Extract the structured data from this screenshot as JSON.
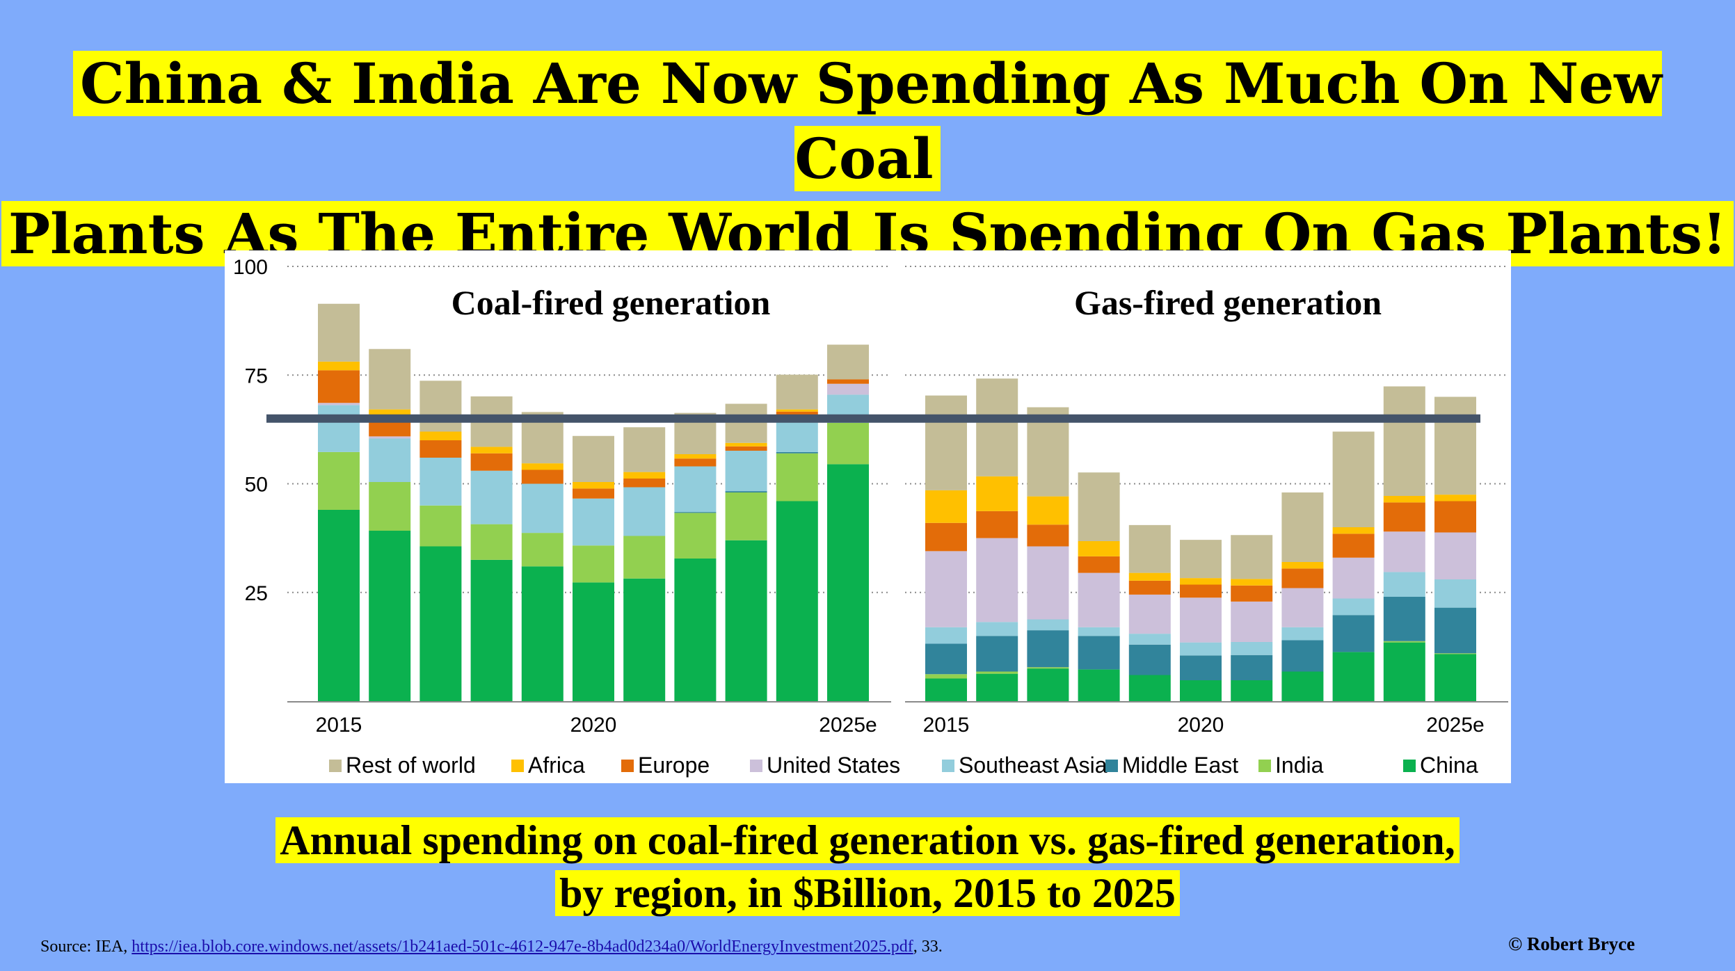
{
  "headline": {
    "line1": "China & India Are Now Spending As Much On New Coal",
    "line2": "Plants As The Entire World Is Spending On Gas Plants!"
  },
  "caption": {
    "line1": "Annual spending on coal-fired generation vs. gas-fired generation,",
    "line2": "by region, in $Billion, 2015 to 2025"
  },
  "source": {
    "prefix": "Source: IEA, ",
    "link": "https://iea.blob.core.windows.net/assets/1b241aed-501c-4612-947e-8b4ad0d234a0/WorldEnergyInvestment2025.pdf",
    "suffix": ", 33."
  },
  "copyright": "© Robert Bryce",
  "colors": {
    "China": "#0bb14f",
    "India": "#92d050",
    "Middle East": "#31849b",
    "Southeast Asia": "#92cddc",
    "United States": "#ccc0da",
    "Europe": "#e36c09",
    "Africa": "#ffc000",
    "Rest of world": "#c4bd97",
    "reference_line": "#44546a"
  },
  "chart_data": {
    "type": "bar",
    "stacked": true,
    "y_ticks": [
      "25",
      "50",
      "75",
      "100"
    ],
    "ylim": [
      0,
      100
    ],
    "x_ticks": [
      "2015",
      "2020",
      "2025e"
    ],
    "legend_position": "bottom",
    "legend_order": [
      "Rest of world",
      "Africa",
      "Europe",
      "United States",
      "Southeast Asia",
      "Middle East",
      "India",
      "China"
    ],
    "grid": true,
    "reference_line_value": 65,
    "panels": [
      {
        "title": "Coal-fired generation",
        "categories": [
          "2015",
          "2016",
          "2017",
          "2018",
          "2019",
          "2020",
          "2021",
          "2022",
          "2023",
          "2024",
          "2025e"
        ],
        "series": [
          {
            "name": "China",
            "values": [
              44,
              39.2,
              35.6,
              32.5,
              31,
              27.3,
              28.2,
              32.8,
              37,
              46,
              54.5
            ]
          },
          {
            "name": "India",
            "values": [
              13.3,
              11.2,
              9.4,
              8.2,
              7.7,
              8.5,
              9.8,
              10.5,
              11,
              11,
              9.5
            ]
          },
          {
            "name": "Middle East",
            "values": [
              0,
              0,
              0,
              0,
              0,
              0,
              0,
              0.2,
              0.3,
              0.3,
              0
            ]
          },
          {
            "name": "Southeast Asia",
            "values": [
              10.8,
              10,
              11,
              12.3,
              11.3,
              10.8,
              11.2,
              10.5,
              9.3,
              8,
              6.5
            ]
          },
          {
            "name": "United States",
            "values": [
              0.5,
              0.5,
              0,
              0,
              0,
              0,
              0,
              0,
              0,
              0.3,
              2.5
            ]
          },
          {
            "name": "Europe",
            "values": [
              7.5,
              4,
              4,
              4,
              3.2,
              2.3,
              2,
              1.8,
              1,
              1,
              1
            ]
          },
          {
            "name": "Africa",
            "values": [
              2,
              2.2,
              2,
              1.5,
              1.5,
              1.5,
              1.5,
              1,
              0.8,
              0.5,
              0
            ]
          },
          {
            "name": "Rest of world",
            "values": [
              13.3,
              13.9,
              11.7,
              11.6,
              11.8,
              10.6,
              10.3,
              9.5,
              9,
              8,
              8
            ]
          }
        ]
      },
      {
        "title": "Gas-fired generation",
        "categories": [
          "2015",
          "2016",
          "2017",
          "2018",
          "2019",
          "2020",
          "2021",
          "2022",
          "2023",
          "2024",
          "2025e"
        ],
        "series": [
          {
            "name": "China",
            "values": [
              5.2,
              6.3,
              7.5,
              7.3,
              6,
              4.8,
              4.8,
              6.8,
              11.3,
              13.5,
              10.8
            ]
          },
          {
            "name": "India",
            "values": [
              1,
              0.5,
              0.3,
              0,
              0,
              0,
              0,
              0,
              0,
              0.3,
              0.2
            ]
          },
          {
            "name": "Middle East",
            "values": [
              7,
              8.2,
              8.5,
              7.7,
              7,
              5.7,
              5.8,
              7.2,
              8.5,
              10.2,
              10.5
            ]
          },
          {
            "name": "Southeast Asia",
            "values": [
              3.8,
              3.2,
              2.5,
              2,
              2.5,
              3,
              3,
              3,
              3.8,
              5.7,
              6.5
            ]
          },
          {
            "name": "United States",
            "values": [
              17.5,
              19.3,
              16.8,
              12.5,
              9,
              10.3,
              9.3,
              9,
              9.4,
              9.3,
              10.8
            ]
          },
          {
            "name": "Europe",
            "values": [
              6.5,
              6.2,
              5,
              3.8,
              3.2,
              3,
              3.7,
              4.5,
              5.5,
              6.7,
              7.2
            ]
          },
          {
            "name": "Africa",
            "values": [
              7.5,
              8,
              6.5,
              3.5,
              1.8,
              1.5,
              1.5,
              1.5,
              1.5,
              1.5,
              1.5
            ]
          },
          {
            "name": "Rest of world",
            "values": [
              21.8,
              22.5,
              20.5,
              15.8,
              11,
              8.8,
              10.1,
              16,
              22,
              25.2,
              22.5
            ]
          }
        ]
      }
    ]
  }
}
